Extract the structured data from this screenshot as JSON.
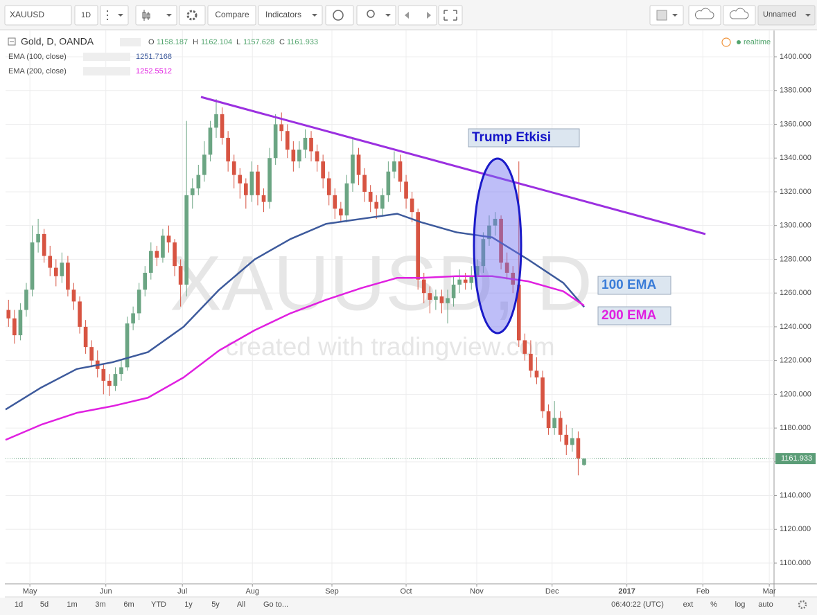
{
  "toolbar": {
    "symbol": "XAUUSD",
    "interval": "1D",
    "compare": "Compare",
    "indicators": "Indicators",
    "layout": "Unnamed"
  },
  "chart_data": {
    "type": "candlestick",
    "symbol_title": "Gold, D, OANDA",
    "ohlc_labels": [
      "O",
      "H",
      "L",
      "C"
    ],
    "status": "realtime",
    "watermark": "XAUUSD, D",
    "watermark_sub": "created with tradingview.com",
    "up_color": "#6ba583",
    "down_color": "#d75442",
    "grid": true,
    "open": [
      1250,
      1245,
      1235,
      1250,
      1262,
      1290,
      1295,
      1282,
      1275,
      1270,
      1278,
      1262,
      1255,
      1240,
      1228,
      1220,
      1215,
      1208,
      1205,
      1212,
      1216,
      1242,
      1248,
      1262,
      1272,
      1285,
      1281,
      1294,
      1290,
      1276,
      1265,
      1318,
      1322,
      1330,
      1342,
      1358,
      1366,
      1352,
      1338,
      1330,
      1325,
      1318,
      1332,
      1318,
      1314,
      1340,
      1360,
      1356,
      1345,
      1338,
      1345,
      1352,
      1344,
      1338,
      1328,
      1318,
      1310,
      1306,
      1325,
      1342,
      1330,
      1320,
      1314,
      1310,
      1318,
      1332,
      1338,
      1326,
      1316,
      1308,
      1268,
      1260,
      1256,
      1258,
      1254,
      1257,
      1265,
      1268,
      1266,
      1270,
      1276,
      1292,
      1300,
      1304,
      1278,
      1272,
      1265,
      1232,
      1224,
      1214,
      1210,
      1190,
      1180,
      1186,
      1176,
      1170,
      1174,
      1158.187
    ],
    "high": [
      1256,
      1250,
      1254,
      1266,
      1300,
      1304,
      1298,
      1288,
      1280,
      1284,
      1282,
      1266,
      1258,
      1244,
      1232,
      1226,
      1218,
      1212,
      1216,
      1220,
      1246,
      1252,
      1266,
      1276,
      1290,
      1288,
      1298,
      1300,
      1292,
      1280,
      1362,
      1328,
      1336,
      1350,
      1362,
      1375,
      1370,
      1356,
      1342,
      1334,
      1328,
      1338,
      1336,
      1322,
      1346,
      1366,
      1367,
      1360,
      1350,
      1350,
      1357,
      1356,
      1348,
      1342,
      1332,
      1322,
      1314,
      1330,
      1352,
      1346,
      1334,
      1324,
      1318,
      1322,
      1338,
      1344,
      1342,
      1330,
      1320,
      1310,
      1272,
      1264,
      1262,
      1262,
      1262,
      1270,
      1274,
      1272,
      1276,
      1280,
      1296,
      1306,
      1308,
      1306,
      1284,
      1276,
      1338,
      1236,
      1232,
      1222,
      1214,
      1194,
      1196,
      1190,
      1182,
      1180,
      1178,
      1162.104
    ],
    "low": [
      1240,
      1230,
      1232,
      1246,
      1258,
      1284,
      1278,
      1270,
      1264,
      1266,
      1258,
      1250,
      1236,
      1224,
      1216,
      1210,
      1200,
      1199,
      1202,
      1208,
      1214,
      1238,
      1244,
      1258,
      1268,
      1276,
      1278,
      1284,
      1270,
      1252,
      1258,
      1310,
      1318,
      1326,
      1338,
      1352,
      1348,
      1332,
      1322,
      1316,
      1310,
      1314,
      1312,
      1308,
      1310,
      1336,
      1350,
      1340,
      1332,
      1334,
      1340,
      1338,
      1332,
      1322,
      1312,
      1304,
      1302,
      1302,
      1320,
      1324,
      1314,
      1308,
      1304,
      1306,
      1314,
      1328,
      1320,
      1310,
      1302,
      1262,
      1254,
      1248,
      1250,
      1248,
      1242,
      1252,
      1260,
      1262,
      1262,
      1264,
      1272,
      1288,
      1294,
      1274,
      1268,
      1260,
      1228,
      1220,
      1210,
      1206,
      1186,
      1176,
      1176,
      1172,
      1164,
      1166,
      1152,
      1157.628
    ],
    "close": [
      1245,
      1235,
      1250,
      1262,
      1290,
      1295,
      1282,
      1275,
      1270,
      1278,
      1262,
      1255,
      1240,
      1228,
      1220,
      1215,
      1208,
      1205,
      1212,
      1216,
      1242,
      1248,
      1262,
      1272,
      1285,
      1281,
      1294,
      1290,
      1276,
      1265,
      1318,
      1322,
      1330,
      1342,
      1358,
      1366,
      1352,
      1338,
      1330,
      1325,
      1318,
      1332,
      1318,
      1314,
      1340,
      1360,
      1356,
      1345,
      1338,
      1345,
      1352,
      1344,
      1338,
      1328,
      1318,
      1310,
      1306,
      1325,
      1342,
      1330,
      1320,
      1314,
      1310,
      1318,
      1332,
      1338,
      1326,
      1316,
      1308,
      1268,
      1260,
      1256,
      1258,
      1254,
      1257,
      1265,
      1268,
      1266,
      1270,
      1276,
      1292,
      1300,
      1304,
      1278,
      1272,
      1265,
      1232,
      1224,
      1214,
      1210,
      1190,
      1180,
      1186,
      1176,
      1170,
      1174,
      1162,
      1161.933
    ],
    "xlim": [
      0,
      129.5
    ],
    "xticks": [
      {
        "value": 4.1,
        "label": "May"
      },
      {
        "value": 16.9,
        "label": "Jun"
      },
      {
        "value": 29.8,
        "label": "Jul"
      },
      {
        "value": 41.6,
        "label": "Aug"
      },
      {
        "value": 55.0,
        "label": "Sep"
      },
      {
        "value": 67.5,
        "label": "Oct"
      },
      {
        "value": 79.4,
        "label": "Nov"
      },
      {
        "value": 92.1,
        "label": "Dec"
      },
      {
        "value": 104.7,
        "label": "2017"
      },
      {
        "value": 117.5,
        "label": "Feb"
      },
      {
        "value": 128.7,
        "label": "Mar"
      }
    ],
    "ylim": [
      1087.7,
      1415.6
    ],
    "yticks": [
      {
        "value": 1100,
        "label": "1100.000"
      },
      {
        "value": 1120,
        "label": "1120.000"
      },
      {
        "value": 1140,
        "label": "1140.000"
      },
      {
        "value": 1160,
        "label": "1160.000"
      },
      {
        "value": 1180,
        "label": "1180.000"
      },
      {
        "value": 1200,
        "label": "1200.000"
      },
      {
        "value": 1220,
        "label": "1220.000"
      },
      {
        "value": 1240,
        "label": "1240.000"
      },
      {
        "value": 1260,
        "label": "1260.000"
      },
      {
        "value": 1280,
        "label": "1280.000"
      },
      {
        "value": 1300,
        "label": "1300.000"
      },
      {
        "value": 1320,
        "label": "1320.000"
      },
      {
        "value": 1340,
        "label": "1340.000"
      },
      {
        "value": 1360,
        "label": "1360.000"
      },
      {
        "value": 1380,
        "label": "1380.000"
      },
      {
        "value": 1400,
        "label": "1400.000"
      }
    ],
    "series": [
      {
        "name": "EMA (100, close)",
        "color": "#3d5a9c",
        "x": [
          0,
          6,
          12,
          18,
          24,
          30,
          36,
          42,
          48,
          54,
          60,
          66,
          70,
          76,
          82,
          88,
          94,
          97.5
        ],
        "values": [
          1191,
          1204,
          1215,
          1219,
          1225,
          1240,
          1262,
          1280,
          1292,
          1301,
          1304,
          1307,
          1302,
          1296,
          1293,
          1280,
          1266,
          1251.7168
        ]
      },
      {
        "name": "EMA (200, close)",
        "color": "#e020e0",
        "x": [
          0,
          6,
          12,
          18,
          24,
          30,
          36,
          42,
          48,
          54,
          60,
          66,
          70,
          76,
          82,
          88,
          94,
          97.5
        ],
        "values": [
          1173,
          1182,
          1189,
          1193,
          1198,
          1210,
          1226,
          1238,
          1248,
          1256,
          1263,
          1269,
          1269,
          1270,
          1270,
          1267,
          1261,
          1252.5512
        ]
      }
    ],
    "annotations": {
      "event": "Trump Etkisi",
      "ema100": "100 EMA",
      "ema200": "200 EMA"
    }
  },
  "bottom_bar": {
    "ranges": [
      "1d",
      "5d",
      "1m",
      "3m",
      "6m",
      "YTD",
      "1y",
      "5y",
      "All"
    ],
    "goto": "Go to...",
    "time": "06:40:22 (UTC)",
    "options": [
      "ext",
      "%",
      "log",
      "auto"
    ]
  }
}
